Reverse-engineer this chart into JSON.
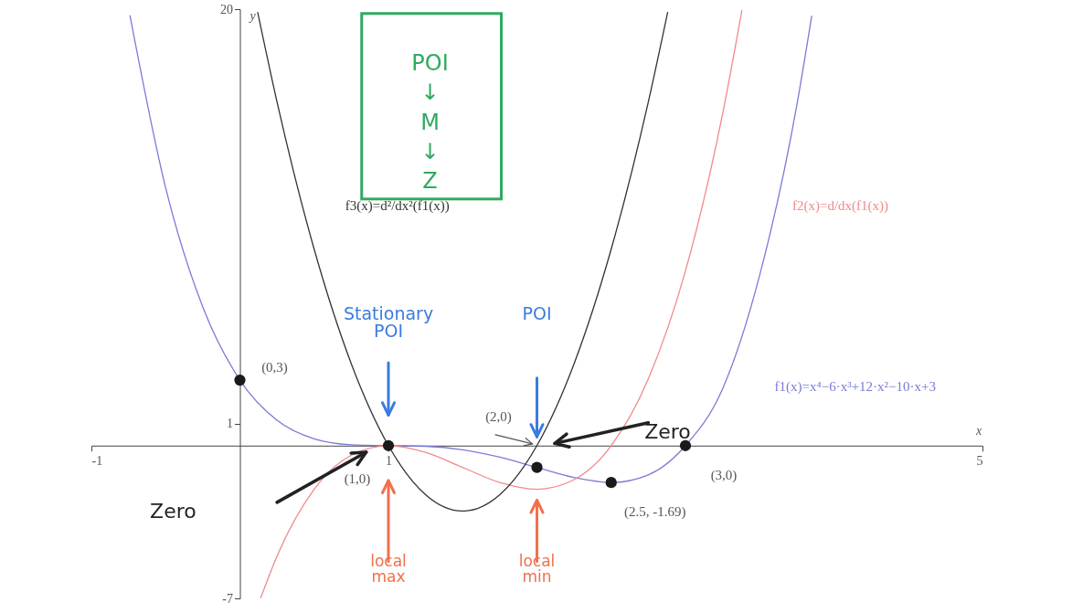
{
  "chart_data": {
    "type": "line",
    "xlabel": "x",
    "ylabel": "y",
    "xlim": [
      -1,
      5
    ],
    "ylim": [
      -7,
      20
    ],
    "xticks": [
      -1,
      1,
      5
    ],
    "yticks": [
      -7,
      1,
      20
    ],
    "series": [
      {
        "name": "f1(x)=x⁴−6·x³+12·x²−10·x+3",
        "color": "#7b7bd6",
        "x": [
          -0.74,
          -0.5,
          -0.25,
          0,
          0.25,
          0.5,
          0.75,
          1,
          1.25,
          1.5,
          1.75,
          2,
          2.25,
          2.5,
          2.75,
          3,
          3.25,
          3.5,
          3.75,
          3.85
        ],
        "values": [
          19.7,
          11.81,
          6.35,
          3,
          1.16,
          0.31,
          0.04,
          0,
          -0.03,
          -0.19,
          -0.53,
          -1,
          -1.46,
          -1.69,
          -1.34,
          0,
          2.6,
          7.81,
          15.6,
          19.68
        ]
      },
      {
        "name": "f2(x)=d/dx(f1(x))",
        "color": "#f08a8a",
        "x": [
          0.14,
          0.25,
          0.5,
          0.75,
          1,
          1.25,
          1.5,
          1.75,
          2,
          2.25,
          2.5,
          2.75,
          3,
          3.25,
          3.38
        ],
        "values": [
          -6.98,
          -5.06,
          -2,
          -0.44,
          0,
          -0.31,
          -1,
          -1.69,
          -2,
          -1.56,
          0,
          3.06,
          8,
          15.19,
          19.94
        ]
      },
      {
        "name": "f3(x)=d²/dx²(f1(x))",
        "color": "#333333",
        "x": [
          0.12,
          0.25,
          0.5,
          0.75,
          1,
          1.25,
          1.5,
          1.75,
          2,
          2.25,
          2.5,
          2.75,
          2.88
        ],
        "values": [
          19.85,
          15.75,
          9,
          3.75,
          0,
          -2.25,
          -3,
          -2.25,
          0,
          3.75,
          9,
          15.75,
          19.85
        ]
      },
      {
        "type": "scatter",
        "color": "#1a1a1a",
        "x": [
          0,
          1,
          2,
          2.5,
          3
        ],
        "values": [
          3,
          0,
          -1,
          -1.69,
          0
        ]
      }
    ],
    "annotations": [
      {
        "text": "(0,3)",
        "x": 0,
        "y": 3
      },
      {
        "text": "(1,0)",
        "x": 1,
        "y": 0
      },
      {
        "text": "(2,0)",
        "x": 2,
        "y": 0
      },
      {
        "text": "(3,0)",
        "x": 3,
        "y": 0
      },
      {
        "text": "(2.5, -1.69)",
        "x": 2.5,
        "y": -1.69
      },
      "Stationary POI",
      "POI",
      "local max",
      "local min",
      "Zero",
      "Zero",
      "POI ↓ M ↓ Z"
    ]
  }
}
